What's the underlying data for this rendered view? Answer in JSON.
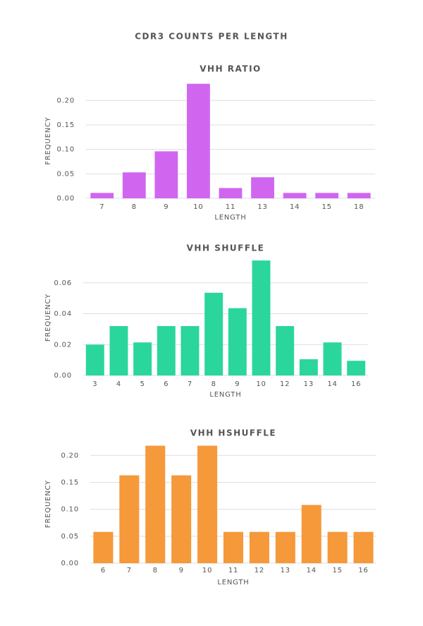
{
  "title": "CDR3 COUNTS PER LENGTH",
  "chart_data": [
    {
      "type": "bar",
      "title": "VHH RATIO",
      "x_label": "LENGTH",
      "y_label": "FREQUENCY",
      "categories": [
        "7",
        "8",
        "9",
        "10",
        "11",
        "13",
        "14",
        "15",
        "18"
      ],
      "values": [
        0.011,
        0.053,
        0.096,
        0.234,
        0.021,
        0.043,
        0.011,
        0.011,
        0.011
      ],
      "color": "#d066f0",
      "ylim": [
        0,
        0.235
      ],
      "yticks": [
        {
          "value": 0,
          "label": "0.00"
        },
        {
          "value": 0.05,
          "label": "0.05"
        },
        {
          "value": 0.1,
          "label": "0.10"
        },
        {
          "value": 0.15,
          "label": "0.15"
        },
        {
          "value": 0.2,
          "label": "0.20"
        }
      ],
      "grid": true
    },
    {
      "type": "bar",
      "title": "VHH SHUFFLE",
      "x_label": "LENGTH",
      "y_label": "FREQUENCY",
      "categories": [
        "3",
        "4",
        "5",
        "6",
        "7",
        "8",
        "9",
        "10",
        "12",
        "13",
        "14",
        "16"
      ],
      "values": [
        0.02,
        0.032,
        0.0214,
        0.032,
        0.032,
        0.0536,
        0.0436,
        0.0745,
        0.032,
        0.0105,
        0.0214,
        0.0095
      ],
      "color": "#2ad69c",
      "ylim": [
        0,
        0.075
      ],
      "yticks": [
        {
          "value": 0,
          "label": "0.00"
        },
        {
          "value": 0.02,
          "label": "0.02"
        },
        {
          "value": 0.04,
          "label": "0.04"
        },
        {
          "value": 0.06,
          "label": "0.06"
        }
      ],
      "grid": true
    },
    {
      "type": "bar",
      "title": "VHH HSHUFFLE",
      "x_label": "LENGTH",
      "y_label": "FREQUENCY",
      "categories": [
        "6",
        "7",
        "8",
        "9",
        "10",
        "11",
        "12",
        "13",
        "14",
        "15",
        "16"
      ],
      "values": [
        0.058,
        0.163,
        0.218,
        0.163,
        0.218,
        0.058,
        0.058,
        0.058,
        0.108,
        0.058,
        0.058
      ],
      "color": "#f5993a",
      "ylim": [
        0,
        0.22
      ],
      "yticks": [
        {
          "value": 0,
          "label": "0.00"
        },
        {
          "value": 0.05,
          "label": "0.05"
        },
        {
          "value": 0.1,
          "label": "0.10"
        },
        {
          "value": 0.15,
          "label": "0.15"
        },
        {
          "value": 0.2,
          "label": "0.20"
        }
      ],
      "grid": true
    }
  ]
}
